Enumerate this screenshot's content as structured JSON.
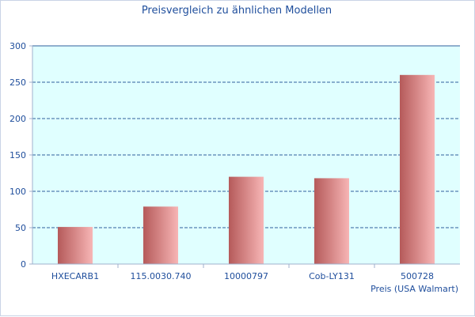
{
  "chart_data": {
    "type": "bar",
    "title": "Preisvergleich zu ähnlichen Modellen",
    "categories": [
      "HXECARB1",
      "115.0030.740",
      "10000797",
      "Cob-LY131",
      "500728"
    ],
    "series": [
      {
        "name": "Preis (USA Walmart)",
        "values": [
          51,
          79,
          120,
          118,
          260
        ]
      }
    ],
    "yticks": [
      0,
      50,
      100,
      150,
      200,
      250,
      300
    ],
    "ylim": [
      0,
      300
    ],
    "grid": true,
    "legend_placement": "bottom-right",
    "colors": {
      "plot_bg": "#e0ffff",
      "bar_dark": "#b55a5a",
      "bar_light": "#f7b5b5",
      "grid": "#2f5f9e",
      "text": "#1f4e9c"
    }
  }
}
